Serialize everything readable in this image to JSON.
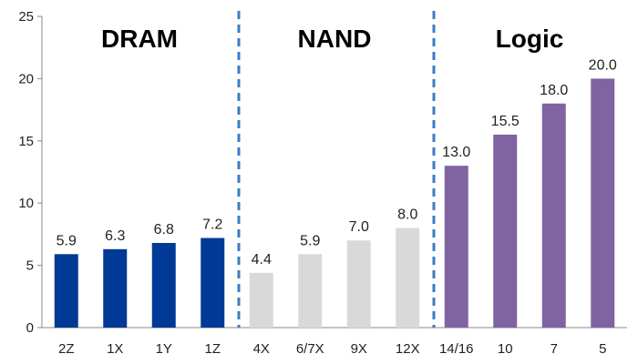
{
  "chart_data": {
    "type": "bar",
    "categories": [
      "2Z",
      "1X",
      "1Y",
      "1Z",
      "4X",
      "6/7X",
      "9X",
      "12X",
      "14/16",
      "10",
      "7",
      "5"
    ],
    "values": [
      5.9,
      6.3,
      6.8,
      7.2,
      4.4,
      5.9,
      7.0,
      8.0,
      13.0,
      15.5,
      18.0,
      20.0
    ],
    "value_labels": [
      "5.9",
      "6.3",
      "6.8",
      "7.2",
      "4.4",
      "5.9",
      "7.0",
      "8.0",
      "13.0",
      "15.5",
      "18.0",
      "20.0"
    ],
    "groups": [
      {
        "name": "DRAM",
        "start": 0,
        "end": 3,
        "color": "#003a96"
      },
      {
        "name": "NAND",
        "start": 4,
        "end": 7,
        "color": "#d9d9d9"
      },
      {
        "name": "Logic",
        "start": 8,
        "end": 11,
        "color": "#8064a2"
      }
    ],
    "divider_color": "#3a7cc4",
    "ylim": [
      0,
      25
    ],
    "yticks": [
      0,
      5,
      10,
      15,
      20,
      25
    ],
    "ytick_labels": [
      "0",
      "5",
      "10",
      "15",
      "20",
      "25"
    ],
    "title": "",
    "xlabel": "",
    "ylabel": "",
    "grid": false
  }
}
